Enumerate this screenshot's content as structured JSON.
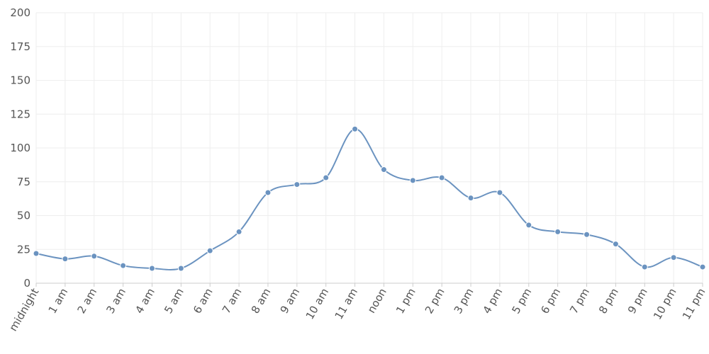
{
  "chart_data": {
    "type": "line",
    "smooth": true,
    "grid": true,
    "legend": "none",
    "ylim": [
      0,
      200
    ],
    "yticks": [
      0,
      25,
      50,
      75,
      100,
      125,
      150,
      175,
      200
    ],
    "categories": [
      "midnight",
      "1 am",
      "2 am",
      "3 am",
      "4 am",
      "5 am",
      "6 am",
      "7 am",
      "8 am",
      "9 am",
      "10 am",
      "11 am",
      "noon",
      "1 pm",
      "2 pm",
      "3 pm",
      "4 pm",
      "5 pm",
      "6 pm",
      "7 pm",
      "8 pm",
      "9 pm",
      "10 pm",
      "11 pm"
    ],
    "series": [
      {
        "values": [
          22,
          18,
          20,
          13,
          11,
          11,
          24,
          38,
          67,
          73,
          78,
          114,
          84,
          76,
          78,
          63,
          67,
          43,
          38,
          36,
          29,
          12,
          19,
          12
        ],
        "color": "#6b93c0"
      }
    ],
    "colors": {
      "grid": "#eeeeee",
      "axis": "#cccccc",
      "text": "#555555"
    }
  }
}
